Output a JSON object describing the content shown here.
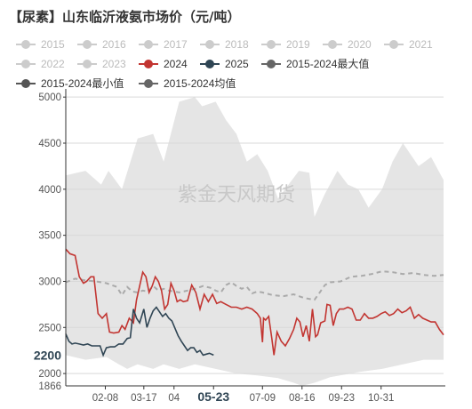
{
  "title": "【尿素】山东临沂液氨市场价（元/吨）",
  "watermark": "紫金天风期货",
  "colors": {
    "band": "#e5e5e5",
    "inactive": "#cccccc",
    "series_2024": "#c23531",
    "series_2025": "#2f4554",
    "series_avg": "#aaaaaa",
    "series_max": "#666666",
    "series_min": "#555555"
  },
  "legend": [
    {
      "name": "2015",
      "active": false
    },
    {
      "name": "2016",
      "active": false
    },
    {
      "name": "2017",
      "active": false
    },
    {
      "name": "2018",
      "active": false
    },
    {
      "name": "2019",
      "active": false
    },
    {
      "name": "2020",
      "active": false
    },
    {
      "name": "2021",
      "active": false
    },
    {
      "name": "2022",
      "active": false
    },
    {
      "name": "2023",
      "active": false
    },
    {
      "name": "2024",
      "active": true,
      "color": "#c23531"
    },
    {
      "name": "2025",
      "active": true,
      "color": "#2f4554"
    },
    {
      "name": "2015-2024最大值",
      "active": true,
      "color": "#666666"
    },
    {
      "name": "2015-2024最小值",
      "active": true,
      "color": "#555555"
    },
    {
      "name": "2015-2024均值",
      "active": true,
      "color": "#666666"
    }
  ],
  "chart_data": {
    "type": "line",
    "x_start": "01-01",
    "x_end": "12-31",
    "x_ticks": [
      "02-08",
      "03-17",
      "04",
      "05-23",
      "07-09",
      "08-16",
      "09-23",
      "10-31"
    ],
    "x_tick_days": [
      39,
      76,
      105,
      143,
      190,
      228,
      266,
      304
    ],
    "current_date_label": "05-23",
    "y_ticks": [
      2000,
      2500,
      3000,
      3500,
      4000,
      4500,
      5000
    ],
    "ylim": [
      1866,
      5050
    ],
    "y_axis_min_label": "1866",
    "current_value_label": "2200",
    "grid": true,
    "series": [
      {
        "name": "2024",
        "values": [
          [
            1,
            3350
          ],
          [
            5,
            3300
          ],
          [
            10,
            3280
          ],
          [
            14,
            3050
          ],
          [
            18,
            2980
          ],
          [
            21,
            3000
          ],
          [
            25,
            3050
          ],
          [
            28,
            3050
          ],
          [
            32,
            2650
          ],
          [
            36,
            2600
          ],
          [
            40,
            2650
          ],
          [
            43,
            2450
          ],
          [
            47,
            2440
          ],
          [
            52,
            2450
          ],
          [
            55,
            2520
          ],
          [
            58,
            2480
          ],
          [
            62,
            2600
          ],
          [
            66,
            2550
          ],
          [
            69,
            2800
          ],
          [
            72,
            2950
          ],
          [
            75,
            3100
          ],
          [
            78,
            3050
          ],
          [
            81,
            2880
          ],
          [
            84,
            2950
          ],
          [
            87,
            3050
          ],
          [
            90,
            3000
          ],
          [
            93,
            2900
          ],
          [
            96,
            2700
          ],
          [
            99,
            2750
          ],
          [
            102,
            2980
          ],
          [
            105,
            2900
          ],
          [
            108,
            2780
          ],
          [
            111,
            2800
          ],
          [
            114,
            2780
          ],
          [
            118,
            2790
          ],
          [
            122,
            2960
          ],
          [
            126,
            2880
          ],
          [
            130,
            2700
          ],
          [
            134,
            2860
          ],
          [
            138,
            2780
          ],
          [
            142,
            2860
          ],
          [
            146,
            2760
          ],
          [
            150,
            2780
          ],
          [
            155,
            2750
          ],
          [
            160,
            2720
          ],
          [
            165,
            2720
          ],
          [
            170,
            2700
          ],
          [
            175,
            2720
          ],
          [
            180,
            2700
          ],
          [
            185,
            2650
          ],
          [
            188,
            2600
          ],
          [
            190,
            2340
          ],
          [
            191,
            2600
          ],
          [
            193,
            2580
          ],
          [
            196,
            2620
          ],
          [
            199,
            2380
          ],
          [
            201,
            2200
          ],
          [
            204,
            2450
          ],
          [
            208,
            2350
          ],
          [
            212,
            2300
          ],
          [
            216,
            2380
          ],
          [
            220,
            2480
          ],
          [
            223,
            2600
          ],
          [
            226,
            2560
          ],
          [
            229,
            2400
          ],
          [
            232,
            2520
          ],
          [
            235,
            2350
          ],
          [
            238,
            2700
          ],
          [
            241,
            2400
          ],
          [
            243,
            2420
          ],
          [
            246,
            2550
          ],
          [
            250,
            2570
          ],
          [
            252,
            2750
          ],
          [
            255,
            2740
          ],
          [
            258,
            2520
          ],
          [
            261,
            2650
          ],
          [
            264,
            2700
          ],
          [
            268,
            2700
          ],
          [
            272,
            2720
          ],
          [
            276,
            2700
          ],
          [
            280,
            2580
          ],
          [
            284,
            2580
          ],
          [
            288,
            2650
          ],
          [
            292,
            2600
          ],
          [
            296,
            2600
          ],
          [
            300,
            2620
          ],
          [
            304,
            2650
          ],
          [
            308,
            2670
          ],
          [
            312,
            2630
          ],
          [
            316,
            2650
          ],
          [
            320,
            2700
          ],
          [
            324,
            2660
          ],
          [
            328,
            2680
          ],
          [
            332,
            2720
          ],
          [
            336,
            2600
          ],
          [
            340,
            2640
          ],
          [
            344,
            2600
          ],
          [
            348,
            2580
          ],
          [
            352,
            2560
          ],
          [
            356,
            2560
          ],
          [
            360,
            2480
          ],
          [
            364,
            2420
          ]
        ]
      },
      {
        "name": "2025",
        "values": [
          [
            1,
            2430
          ],
          [
            4,
            2350
          ],
          [
            7,
            2320
          ],
          [
            10,
            2330
          ],
          [
            14,
            2320
          ],
          [
            18,
            2310
          ],
          [
            22,
            2320
          ],
          [
            26,
            2300
          ],
          [
            30,
            2300
          ],
          [
            34,
            2300
          ],
          [
            37,
            2200
          ],
          [
            40,
            2280
          ],
          [
            44,
            2290
          ],
          [
            48,
            2290
          ],
          [
            52,
            2320
          ],
          [
            56,
            2320
          ],
          [
            60,
            2380
          ],
          [
            63,
            2390
          ],
          [
            66,
            2700
          ],
          [
            69,
            2600
          ],
          [
            72,
            2550
          ],
          [
            76,
            2700
          ],
          [
            79,
            2500
          ],
          [
            82,
            2600
          ],
          [
            85,
            2680
          ],
          [
            88,
            2720
          ],
          [
            91,
            2670
          ],
          [
            94,
            2620
          ],
          [
            97,
            2650
          ],
          [
            100,
            2600
          ],
          [
            103,
            2570
          ],
          [
            106,
            2490
          ],
          [
            109,
            2410
          ],
          [
            112,
            2350
          ],
          [
            115,
            2300
          ],
          [
            118,
            2250
          ],
          [
            121,
            2280
          ],
          [
            124,
            2280
          ],
          [
            127,
            2230
          ],
          [
            130,
            2250
          ],
          [
            133,
            2200
          ],
          [
            136,
            2210
          ],
          [
            139,
            2220
          ],
          [
            143,
            2200
          ]
        ]
      },
      {
        "name": "2015-2024均值",
        "values": [
          [
            1,
            2990
          ],
          [
            10,
            3030
          ],
          [
            20,
            3010
          ],
          [
            30,
            3000
          ],
          [
            40,
            2980
          ],
          [
            50,
            2940
          ],
          [
            55,
            2850
          ],
          [
            60,
            2940
          ],
          [
            65,
            2890
          ],
          [
            70,
            2880
          ],
          [
            75,
            2900
          ],
          [
            80,
            2890
          ],
          [
            85,
            2950
          ],
          [
            90,
            2900
          ],
          [
            95,
            2920
          ],
          [
            100,
            2900
          ],
          [
            110,
            2880
          ],
          [
            118,
            2900
          ],
          [
            125,
            2920
          ],
          [
            133,
            2950
          ],
          [
            140,
            2930
          ],
          [
            145,
            2900
          ],
          [
            150,
            2880
          ],
          [
            155,
            2960
          ],
          [
            160,
            2990
          ],
          [
            165,
            2950
          ],
          [
            170,
            2920
          ],
          [
            175,
            2940
          ],
          [
            180,
            2870
          ],
          [
            185,
            2890
          ],
          [
            190,
            2880
          ],
          [
            200,
            2850
          ],
          [
            210,
            2840
          ],
          [
            220,
            2860
          ],
          [
            230,
            2820
          ],
          [
            240,
            2800
          ],
          [
            245,
            2880
          ],
          [
            250,
            2960
          ],
          [
            255,
            2990
          ],
          [
            265,
            3000
          ],
          [
            275,
            3050
          ],
          [
            285,
            3060
          ],
          [
            295,
            3080
          ],
          [
            305,
            3110
          ],
          [
            315,
            3100
          ],
          [
            325,
            3080
          ],
          [
            335,
            3090
          ],
          [
            345,
            3070
          ],
          [
            355,
            3060
          ],
          [
            364,
            3070
          ]
        ]
      },
      {
        "name": "2015-2024最大值",
        "values": [
          [
            1,
            4150
          ],
          [
            20,
            4200
          ],
          [
            35,
            4050
          ],
          [
            42,
            4200
          ],
          [
            55,
            4000
          ],
          [
            70,
            4550
          ],
          [
            85,
            4600
          ],
          [
            95,
            4300
          ],
          [
            110,
            4950
          ],
          [
            125,
            5000
          ],
          [
            132,
            4900
          ],
          [
            145,
            4950
          ],
          [
            155,
            4750
          ],
          [
            165,
            4600
          ],
          [
            175,
            4300
          ],
          [
            185,
            4380
          ],
          [
            195,
            4200
          ],
          [
            205,
            3900
          ],
          [
            215,
            4050
          ],
          [
            225,
            4200
          ],
          [
            235,
            4180
          ],
          [
            240,
            3700
          ],
          [
            250,
            3950
          ],
          [
            262,
            4200
          ],
          [
            272,
            4050
          ],
          [
            282,
            4000
          ],
          [
            292,
            3800
          ],
          [
            305,
            4000
          ],
          [
            315,
            4300
          ],
          [
            325,
            4500
          ],
          [
            340,
            4250
          ],
          [
            352,
            4350
          ],
          [
            364,
            4100
          ]
        ]
      },
      {
        "name": "2015-2024最小值",
        "values": [
          [
            1,
            2200
          ],
          [
            20,
            2150
          ],
          [
            40,
            2180
          ],
          [
            52,
            2100
          ],
          [
            60,
            2050
          ],
          [
            70,
            2100
          ],
          [
            85,
            2050
          ],
          [
            95,
            2100
          ],
          [
            110,
            2050
          ],
          [
            125,
            2100
          ],
          [
            145,
            2050
          ],
          [
            165,
            2000
          ],
          [
            185,
            1980
          ],
          [
            205,
            1950
          ],
          [
            220,
            1900
          ],
          [
            228,
            1866
          ],
          [
            240,
            1900
          ],
          [
            255,
            1960
          ],
          [
            270,
            1990
          ],
          [
            285,
            2020
          ],
          [
            305,
            2050
          ],
          [
            325,
            2100
          ],
          [
            345,
            2150
          ],
          [
            364,
            2150
          ]
        ]
      }
    ]
  }
}
